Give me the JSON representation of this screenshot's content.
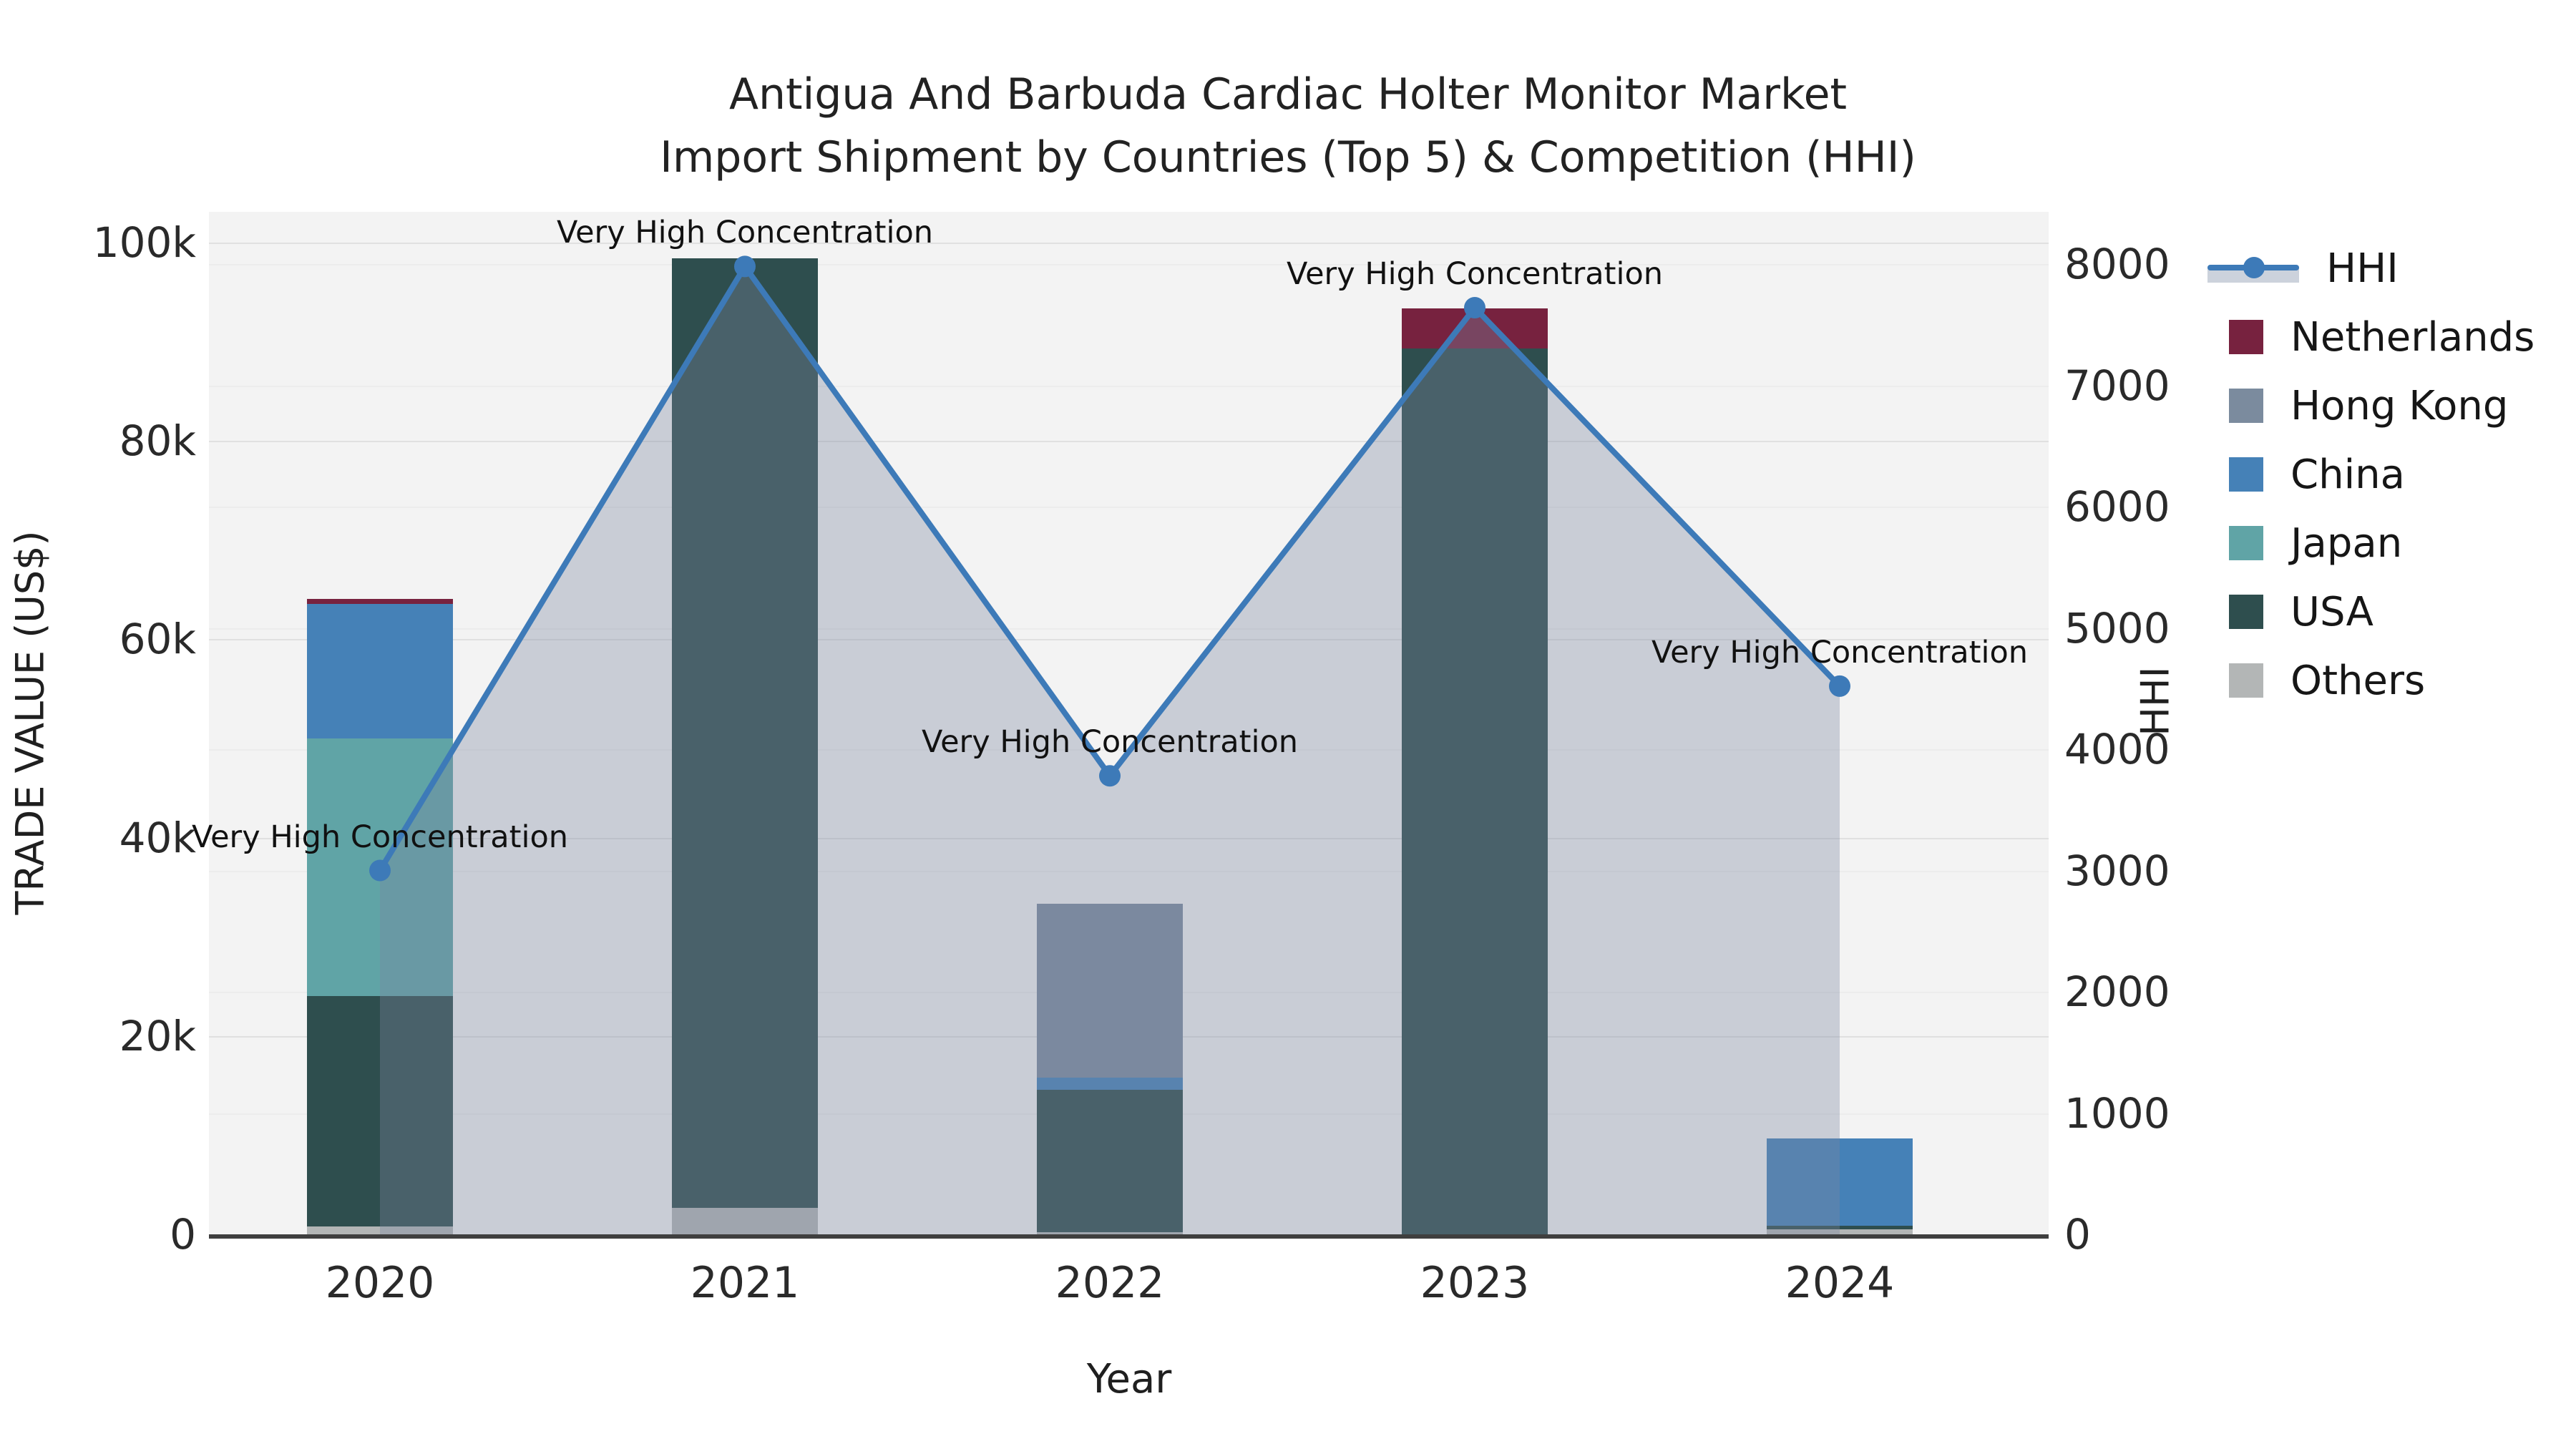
{
  "title": {
    "line1": "Antigua And Barbuda Cardiac Holter Monitor Market",
    "line2": "Import Shipment by Countries (Top 5) & Competition (HHI)"
  },
  "axes": {
    "left": {
      "title": "TRADE VALUE (US$)",
      "ticks": [
        "0",
        "20k",
        "40k",
        "60k",
        "80k",
        "100k"
      ],
      "max": 100000
    },
    "right": {
      "title": "HHI",
      "ticks": [
        "0",
        "1000",
        "2000",
        "3000",
        "4000",
        "5000",
        "6000",
        "7000",
        "8000"
      ],
      "max": 8000
    },
    "x": {
      "title": "Year"
    }
  },
  "legend": {
    "items": [
      {
        "label": "HHI",
        "type": "line",
        "color": "#3d7ab8"
      },
      {
        "label": "Netherlands",
        "type": "swatch",
        "color": "#77223f"
      },
      {
        "label": "Hong Kong",
        "type": "swatch",
        "color": "#7b8b9e"
      },
      {
        "label": "China",
        "type": "swatch",
        "color": "#4581b7"
      },
      {
        "label": "Japan",
        "type": "swatch",
        "color": "#60a4a6"
      },
      {
        "label": "USA",
        "type": "swatch",
        "color": "#2e4e4e"
      },
      {
        "label": "Others",
        "type": "swatch",
        "color": "#b3b6b6"
      }
    ]
  },
  "chart_data": {
    "type": "bar+line",
    "categories": [
      "2020",
      "2021",
      "2022",
      "2023",
      "2024"
    ],
    "bar_axis": "left",
    "bar_stack_order_bottom_to_top": [
      "Others",
      "USA",
      "Japan",
      "China",
      "Hong Kong",
      "Netherlands"
    ],
    "series": [
      {
        "name": "Others",
        "type": "bar",
        "color": "#b3b6b6",
        "values": [
          800,
          2700,
          200,
          0,
          500
        ]
      },
      {
        "name": "USA",
        "type": "bar",
        "color": "#2e4e4e",
        "values": [
          23200,
          95700,
          14400,
          89300,
          400
        ]
      },
      {
        "name": "Japan",
        "type": "bar",
        "color": "#60a4a6",
        "values": [
          26000,
          0,
          0,
          0,
          0
        ]
      },
      {
        "name": "China",
        "type": "bar",
        "color": "#4581b7",
        "values": [
          13600,
          0,
          1200,
          0,
          8800
        ]
      },
      {
        "name": "Hong Kong",
        "type": "bar",
        "color": "#7b8b9e",
        "values": [
          0,
          0,
          17500,
          0,
          0
        ]
      },
      {
        "name": "Netherlands",
        "type": "bar",
        "color": "#77223f",
        "values": [
          500,
          0,
          0,
          4100,
          0
        ]
      }
    ],
    "bar_totals": [
      64100,
      98400,
      33300,
      93400,
      9700
    ],
    "hhi_series": {
      "name": "HHI",
      "type": "line+area",
      "axis": "right",
      "color": "#3d7ab8",
      "fill": "rgba(124,136,161,0.35)",
      "values": [
        3000,
        7980,
        3780,
        7640,
        4520
      ]
    },
    "annotations": [
      {
        "x": "2020",
        "text": "Very High Concentration"
      },
      {
        "x": "2021",
        "text": "Very High Concentration"
      },
      {
        "x": "2022",
        "text": "Very High Concentration"
      },
      {
        "x": "2023",
        "text": "Very High Concentration"
      },
      {
        "x": "2024",
        "text": "Very High Concentration"
      }
    ],
    "xlabel": "Year",
    "ylabel_left": "TRADE VALUE (US$)",
    "ylabel_right": "HHI",
    "ylim_left": [
      0,
      100000
    ],
    "ylim_right": [
      0,
      8000
    ],
    "grid": true,
    "legend_position": "right"
  }
}
